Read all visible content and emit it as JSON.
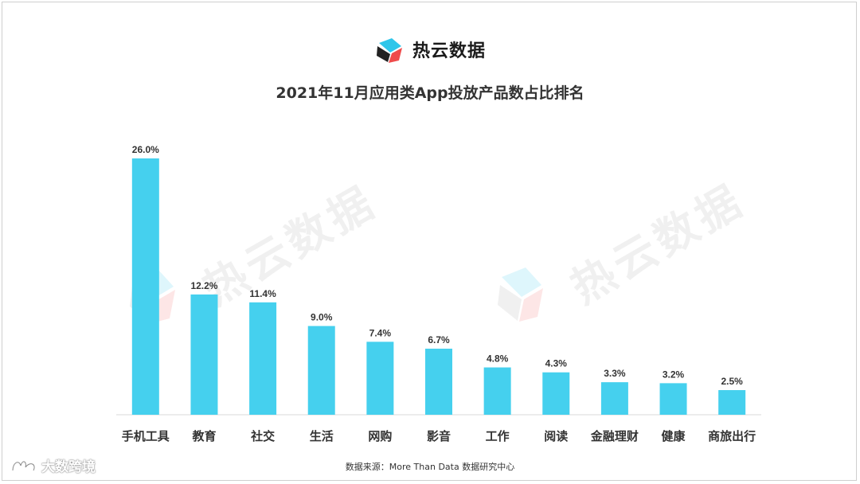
{
  "brand": {
    "name": "热云数据",
    "logo_icon": "reyun-logo-icon"
  },
  "watermark_text": "热云数据",
  "chart_data": {
    "type": "bar",
    "title": "2021年11月应用类App投放产品数占比排名",
    "categories": [
      "手机工具",
      "教育",
      "社交",
      "生活",
      "网购",
      "影音",
      "工作",
      "阅读",
      "金融理财",
      "健康",
      "商旅出行"
    ],
    "values": [
      26.0,
      12.2,
      11.4,
      9.0,
      7.4,
      6.7,
      4.8,
      4.3,
      3.3,
      3.2,
      2.5
    ],
    "value_labels": [
      "26.0%",
      "12.2%",
      "11.4%",
      "9.0%",
      "7.4%",
      "6.7%",
      "4.8%",
      "4.3%",
      "3.3%",
      "3.2%",
      "2.5%"
    ],
    "unit": "%",
    "bar_color": "#45d0ee",
    "xlabel": "",
    "ylabel": "",
    "grid": false,
    "legend": "none"
  },
  "source_text": "数据来源：More Than Data 数据研究中心",
  "corner_label": "大数跨境",
  "colors": {
    "logo_red": "#ef4b4b",
    "logo_blue": "#2fc6ea",
    "logo_dark": "#222222"
  }
}
